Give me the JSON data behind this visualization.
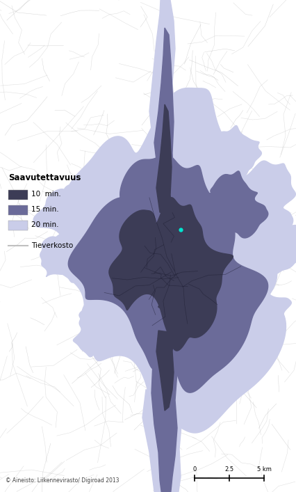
{
  "background_color": "#ffffff",
  "legend_title": "Saavutettavuus",
  "legend_items": [
    {
      "label": "10  min.",
      "color": "#3c3c56"
    },
    {
      "label": "15 min.",
      "color": "#6b6b99"
    },
    {
      "label": "20 min.",
      "color": "#cacde9"
    }
  ],
  "road_network_label": "Tieverkosto",
  "road_network_color": "#c0c0c0",
  "attribution": "© Aineisto: Liikennevirasto/ Digiroad 2013",
  "scale_bar_labels": [
    "0",
    "2.5",
    "5 km"
  ],
  "center_point_color": "#00e5d0",
  "figsize": [
    4.27,
    7.07
  ],
  "dpi": 100,
  "zone_20_color": "#cacde9",
  "zone_15_color": "#6b6b99",
  "zone_10_color": "#3c3c56",
  "road_color": "#c8c8c8",
  "road_color_dark": "#999999"
}
